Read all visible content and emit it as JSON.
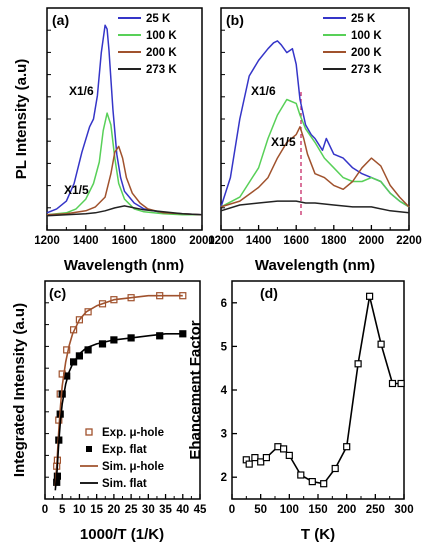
{
  "chart_data": [
    {
      "panel": "(a)",
      "type": "line",
      "xlabel": "Wavelength (nm)",
      "ylabel": "PL Intensity (a.u)",
      "xlim": [
        1200,
        2000
      ],
      "xticks": [
        "1200",
        "1400",
        "1600",
        "1800",
        "2000"
      ],
      "ylim": [
        0,
        1
      ],
      "legend_position": "top-right",
      "annotations": [
        "X1/6",
        "X1/5"
      ],
      "series": [
        {
          "name": "25 K",
          "color": "#3535c8",
          "x": [
            1200,
            1250,
            1300,
            1340,
            1380,
            1420,
            1440,
            1460,
            1480,
            1500,
            1510,
            1520,
            1540,
            1560,
            1580,
            1600,
            1650,
            1700,
            1800,
            1900,
            2000
          ],
          "y": [
            0.02,
            0.04,
            0.08,
            0.17,
            0.33,
            0.46,
            0.5,
            0.62,
            0.84,
            0.98,
            0.96,
            0.85,
            0.55,
            0.32,
            0.2,
            0.13,
            0.07,
            0.04,
            0.02,
            0.015,
            0.01
          ]
        },
        {
          "name": "100 K",
          "color": "#58d058",
          "x": [
            1200,
            1300,
            1350,
            1400,
            1440,
            1470,
            1490,
            1510,
            1530,
            1550,
            1570,
            1600,
            1650,
            1700,
            1800,
            1900,
            2000
          ],
          "y": [
            0.01,
            0.02,
            0.04,
            0.09,
            0.17,
            0.28,
            0.44,
            0.53,
            0.47,
            0.3,
            0.17,
            0.09,
            0.04,
            0.025,
            0.015,
            0.01,
            0.01
          ]
        },
        {
          "name": "200 K",
          "color": "#a0522d",
          "x": [
            1200,
            1300,
            1400,
            1450,
            1500,
            1530,
            1550,
            1570,
            1590,
            1610,
            1640,
            1680,
            1720,
            1800,
            1900,
            2000
          ],
          "y": [
            0.01,
            0.015,
            0.03,
            0.05,
            0.1,
            0.22,
            0.33,
            0.36,
            0.3,
            0.2,
            0.12,
            0.07,
            0.04,
            0.02,
            0.015,
            0.01
          ]
        },
        {
          "name": "273 K",
          "color": "#222222",
          "x": [
            1200,
            1300,
            1400,
            1450,
            1500,
            1550,
            1600,
            1650,
            1700,
            1800,
            1900,
            2000
          ],
          "y": [
            0.005,
            0.01,
            0.015,
            0.02,
            0.03,
            0.045,
            0.055,
            0.045,
            0.035,
            0.025,
            0.015,
            0.01
          ]
        }
      ]
    },
    {
      "panel": "(b)",
      "type": "line",
      "xlabel": "Wavelength (nm)",
      "ylabel": "",
      "xlim": [
        1200,
        2200
      ],
      "xticks": [
        "1200",
        "1400",
        "1600",
        "1800",
        "2000",
        "2200"
      ],
      "ylim": [
        0,
        1
      ],
      "legend_position": "top-right",
      "annotations": [
        "X1/6",
        "X1/5"
      ],
      "series": [
        {
          "name": "25 K",
          "color": "#3535c8",
          "x": [
            1200,
            1250,
            1300,
            1350,
            1400,
            1450,
            1480,
            1500,
            1520,
            1550,
            1580,
            1600,
            1620,
            1650,
            1680,
            1700,
            1740,
            1760,
            1800,
            1850,
            1900,
            1950,
            2000,
            2050,
            2100,
            2150,
            2200
          ],
          "y": [
            0.05,
            0.2,
            0.5,
            0.72,
            0.8,
            0.86,
            0.89,
            0.9,
            0.88,
            0.84,
            0.86,
            0.78,
            0.6,
            0.47,
            0.42,
            0.4,
            0.34,
            0.4,
            0.32,
            0.3,
            0.25,
            0.22,
            0.2,
            0.18,
            0.12,
            0.08,
            0.05
          ]
        },
        {
          "name": "100 K",
          "color": "#58d058",
          "x": [
            1200,
            1300,
            1400,
            1450,
            1500,
            1550,
            1600,
            1620,
            1650,
            1700,
            1750,
            1800,
            1850,
            1900,
            1950,
            2000,
            2050,
            2100,
            2150,
            2200
          ],
          "y": [
            0.05,
            0.1,
            0.25,
            0.4,
            0.52,
            0.6,
            0.58,
            0.52,
            0.45,
            0.38,
            0.3,
            0.25,
            0.2,
            0.18,
            0.18,
            0.2,
            0.18,
            0.12,
            0.08,
            0.05
          ]
        },
        {
          "name": "200 K",
          "color": "#a0522d",
          "x": [
            1200,
            1300,
            1400,
            1450,
            1500,
            1550,
            1600,
            1620,
            1640,
            1660,
            1700,
            1750,
            1800,
            1850,
            1900,
            1950,
            2000,
            2050,
            2100,
            2150,
            2200
          ],
          "y": [
            0.05,
            0.08,
            0.15,
            0.2,
            0.3,
            0.38,
            0.42,
            0.46,
            0.4,
            0.32,
            0.22,
            0.2,
            0.16,
            0.14,
            0.18,
            0.25,
            0.3,
            0.26,
            0.16,
            0.1,
            0.05
          ]
        },
        {
          "name": "273 K",
          "color": "#222222",
          "x": [
            1200,
            1300,
            1400,
            1500,
            1600,
            1650,
            1700,
            1800,
            1900,
            2000,
            2100,
            2200
          ],
          "y": [
            0.03,
            0.06,
            0.07,
            0.08,
            0.08,
            0.07,
            0.07,
            0.06,
            0.05,
            0.05,
            0.03,
            0.02
          ]
        }
      ]
    },
    {
      "panel": "(c)",
      "type": "scatter",
      "xlabel": "1000/T (1/K)",
      "ylabel": "Integrated Intensity (a.u)",
      "xlim": [
        0,
        45
      ],
      "xticks": [
        "0",
        "5",
        "10",
        "15",
        "20",
        "25",
        "30",
        "35",
        "40",
        "45"
      ],
      "ylim": [
        0,
        1
      ],
      "legend_position": "bottom-right",
      "series": [
        {
          "name": "Exp. μ-hole",
          "color": "#a0522d",
          "marker": "open-square",
          "x": [
            3.4,
            3.6,
            4.0,
            4.4,
            5.0,
            6.3,
            8.3,
            10.0,
            12.5,
            16.7,
            20,
            25,
            33.3,
            40
          ],
          "y": [
            0.12,
            0.15,
            0.35,
            0.48,
            0.58,
            0.7,
            0.8,
            0.85,
            0.89,
            0.93,
            0.95,
            0.96,
            0.97,
            0.97
          ]
        },
        {
          "name": "Exp. flat",
          "color": "#000000",
          "marker": "filled-square",
          "x": [
            3.4,
            3.6,
            4.0,
            4.4,
            5.0,
            6.3,
            8.3,
            10.0,
            12.5,
            16.7,
            20,
            25,
            33.3,
            40
          ],
          "y": [
            0.04,
            0.07,
            0.25,
            0.38,
            0.48,
            0.57,
            0.64,
            0.67,
            0.7,
            0.73,
            0.75,
            0.76,
            0.77,
            0.78
          ]
        },
        {
          "name": "Sim. μ-hole",
          "color": "#a0522d",
          "marker": "line",
          "x": [
            3,
            3.5,
            4,
            4.5,
            5,
            6,
            7,
            8,
            10,
            12,
            15,
            20,
            25,
            30,
            35,
            40
          ],
          "y": [
            0.02,
            0.15,
            0.3,
            0.42,
            0.52,
            0.64,
            0.72,
            0.78,
            0.85,
            0.89,
            0.92,
            0.95,
            0.96,
            0.97,
            0.97,
            0.97
          ]
        },
        {
          "name": "Sim. flat",
          "color": "#000000",
          "marker": "line",
          "x": [
            3,
            3.5,
            4,
            4.5,
            5,
            6,
            7,
            8,
            10,
            12,
            15,
            20,
            25,
            30,
            35,
            40
          ],
          "y": [
            0.0,
            0.1,
            0.24,
            0.35,
            0.43,
            0.53,
            0.59,
            0.63,
            0.68,
            0.71,
            0.73,
            0.75,
            0.76,
            0.77,
            0.78,
            0.78
          ]
        }
      ]
    },
    {
      "panel": "(d)",
      "type": "line",
      "xlabel": "T (K)",
      "ylabel": "Ehancement Factor",
      "xlim": [
        0,
        300
      ],
      "xticks": [
        "0",
        "50",
        "100",
        "150",
        "200",
        "250",
        "300"
      ],
      "ylim": [
        1.5,
        6.5
      ],
      "yticks": [
        "2",
        "3",
        "4",
        "5",
        "6"
      ],
      "series": [
        {
          "name": "",
          "color": "#000000",
          "marker": "open-square",
          "x": [
            25,
            30,
            40,
            50,
            60,
            80,
            90,
            100,
            120,
            140,
            160,
            180,
            200,
            220,
            240,
            260,
            280,
            295
          ],
          "y": [
            2.4,
            2.3,
            2.45,
            2.35,
            2.45,
            2.7,
            2.65,
            2.5,
            2.05,
            1.9,
            1.85,
            2.2,
            2.7,
            4.6,
            6.15,
            5.05,
            4.15,
            4.15
          ]
        }
      ]
    }
  ]
}
